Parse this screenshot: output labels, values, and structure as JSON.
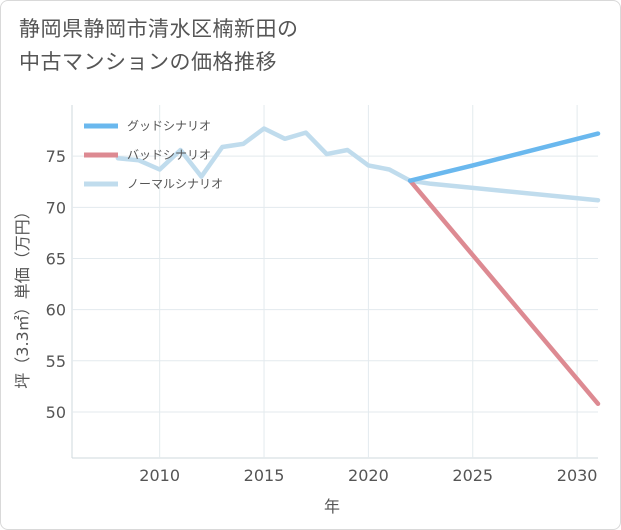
{
  "chart_data": {
    "type": "line",
    "title_lines": [
      "静岡県静岡市清水区楠新田の",
      "中古マンションの価格推移"
    ],
    "xlabel": "年",
    "ylabel": "坪（3.3㎡）単価（万円）",
    "xlim": [
      2005.8,
      2031
    ],
    "ylim": [
      45.5,
      80
    ],
    "x_ticks": [
      2010,
      2015,
      2020,
      2025,
      2030
    ],
    "y_ticks": [
      50,
      55,
      60,
      65,
      70,
      75
    ],
    "grid": true,
    "legend_position": "top-left",
    "series": [
      {
        "name": "グッドシナリオ",
        "color": "#6ab8ee",
        "points": [
          [
            2022,
            72.6
          ],
          [
            2025,
            74.1
          ],
          [
            2031,
            77.2
          ]
        ]
      },
      {
        "name": "バッドシナリオ",
        "color": "#dd8a92",
        "points": [
          [
            2022,
            72.6
          ],
          [
            2031,
            50.8
          ]
        ]
      },
      {
        "name": "ノーマルシナリオ",
        "color": "#c0dced",
        "points": [
          [
            2008,
            74.8
          ],
          [
            2009,
            74.6
          ],
          [
            2010,
            73.7
          ],
          [
            2011,
            75.6
          ],
          [
            2012,
            73.0
          ],
          [
            2013,
            75.9
          ],
          [
            2014,
            76.2
          ],
          [
            2015,
            77.7
          ],
          [
            2016,
            76.7
          ],
          [
            2017,
            77.3
          ],
          [
            2018,
            75.2
          ],
          [
            2019,
            75.6
          ],
          [
            2020,
            74.1
          ],
          [
            2021,
            73.7
          ],
          [
            2022,
            72.6
          ],
          [
            2023,
            72.3
          ],
          [
            2025,
            71.9
          ],
          [
            2031,
            70.7
          ]
        ]
      }
    ]
  }
}
